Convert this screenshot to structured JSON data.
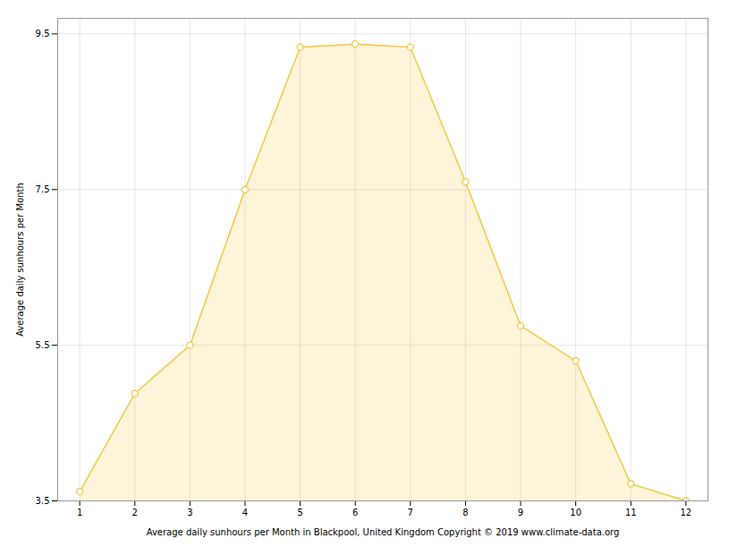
{
  "chart_data": {
    "type": "area",
    "x": [
      1,
      2,
      3,
      4,
      5,
      6,
      7,
      8,
      9,
      10,
      11,
      12
    ],
    "values": [
      3.62,
      4.88,
      5.5,
      7.5,
      9.33,
      9.37,
      9.33,
      7.6,
      5.75,
      5.3,
      3.72,
      3.5
    ],
    "color": "#F5C842",
    "marker": "circle",
    "xlabel": "Average daily sunhours per Month in Blackpool, United Kingdom Copyright © 2019 www.climate-data.org",
    "ylabel": "Average daily sunhours per Month",
    "xlim": [
      0.6,
      12.4
    ],
    "ylim": [
      3.5,
      9.7
    ],
    "xticks": [
      1,
      2,
      3,
      4,
      5,
      6,
      7,
      8,
      9,
      10,
      11,
      12
    ],
    "yticks": [
      3.5,
      5.5,
      7.5,
      9.5
    ],
    "grid": true
  }
}
